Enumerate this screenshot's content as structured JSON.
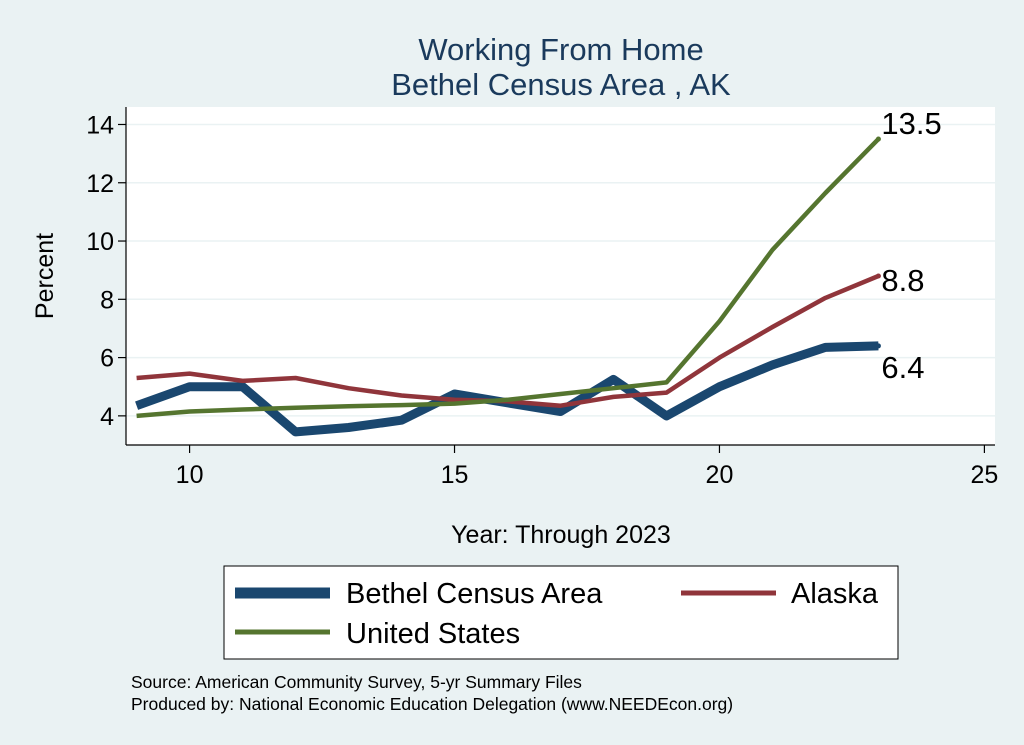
{
  "chart_data": {
    "type": "line",
    "title": "Working From Home",
    "subtitle": "Bethel Census Area , AK",
    "xlabel": "Year: Through 2023",
    "ylabel": "Percent",
    "xlim": [
      8.8,
      25.2
    ],
    "ylim": [
      3.0,
      14.6
    ],
    "x_ticks": [
      10,
      15,
      20,
      25
    ],
    "y_ticks": [
      4,
      6,
      8,
      10,
      12,
      14
    ],
    "grid": true,
    "legend_position": "bottom",
    "series": [
      {
        "name": "Bethel Census Area",
        "color": "#1a476f",
        "x": [
          9,
          10,
          11,
          12,
          13,
          14,
          15,
          16,
          17,
          18,
          19,
          20,
          21,
          22,
          23
        ],
        "y": [
          4.35,
          5.0,
          5.0,
          3.45,
          3.6,
          3.85,
          4.75,
          4.45,
          4.15,
          5.25,
          4.0,
          5.0,
          5.75,
          6.35,
          6.4
        ],
        "end_label": "6.4"
      },
      {
        "name": "Alaska",
        "color": "#90353b",
        "x": [
          9,
          10,
          11,
          12,
          13,
          14,
          15,
          16,
          17,
          18,
          19,
          20,
          21,
          22,
          23
        ],
        "y": [
          5.3,
          5.45,
          5.2,
          5.3,
          4.95,
          4.7,
          4.55,
          4.5,
          4.35,
          4.65,
          4.8,
          6.0,
          7.05,
          8.05,
          8.8
        ],
        "end_label": "8.8"
      },
      {
        "name": "United States",
        "color": "#55752f",
        "x": [
          9,
          10,
          11,
          12,
          13,
          14,
          15,
          16,
          17,
          18,
          19,
          20,
          21,
          22,
          23
        ],
        "y": [
          4.0,
          4.15,
          4.22,
          4.28,
          4.33,
          4.37,
          4.42,
          4.55,
          4.75,
          4.95,
          5.15,
          7.25,
          9.7,
          11.65,
          13.5
        ],
        "end_label": "13.5"
      }
    ]
  },
  "notes": [
    "Source: American Community Survey, 5-yr Summary Files",
    "Produced by: National Economic Education Delegation (www.NEEDEcon.org)"
  ]
}
